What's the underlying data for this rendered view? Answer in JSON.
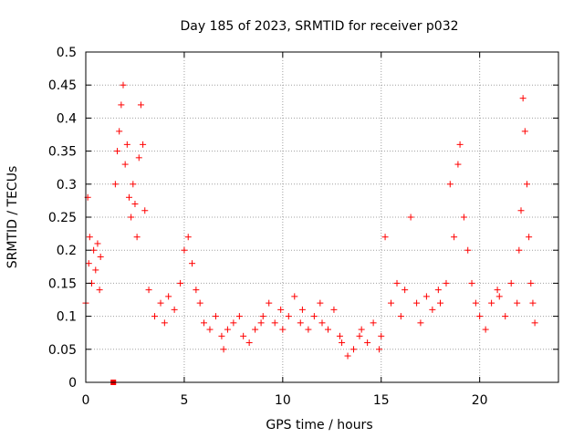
{
  "chart_data": {
    "type": "scatter",
    "title": "Day 185 of 2023, SRMTID for receiver p032",
    "xlabel": "GPS time / hours",
    "ylabel": "SRMTID / TECUs",
    "xlim": [
      0,
      24
    ],
    "ylim": [
      0,
      0.5
    ],
    "xticks": [
      0,
      5,
      10,
      15,
      20
    ],
    "xtick_labels": [
      "0",
      "5",
      "10",
      "15",
      "20"
    ],
    "yticks": [
      0,
      0.05,
      0.1,
      0.15,
      0.2,
      0.25,
      0.3,
      0.35,
      0.4,
      0.45,
      0.5
    ],
    "ytick_labels": [
      "0",
      "0.05",
      "0.1",
      "0.15",
      "0.2",
      "0.25",
      "0.3",
      "0.35",
      "0.4",
      "0.45",
      "0.5"
    ],
    "grid": true,
    "marker": "+",
    "color": "#ff0000",
    "series": [
      {
        "name": "SRMTID",
        "x": [
          0.0,
          0.1,
          0.15,
          0.2,
          0.3,
          0.4,
          0.5,
          0.6,
          0.7,
          0.75,
          1.5,
          1.6,
          1.7,
          1.8,
          1.9,
          2.0,
          2.1,
          2.2,
          2.3,
          2.4,
          2.5,
          2.6,
          2.7,
          2.8,
          2.9,
          3.0,
          3.2,
          3.5,
          3.8,
          4.0,
          4.2,
          4.5,
          4.8,
          5.0,
          5.2,
          5.4,
          5.6,
          5.8,
          6.0,
          6.3,
          6.6,
          6.9,
          7.0,
          7.2,
          7.5,
          7.8,
          8.0,
          8.3,
          8.6,
          8.9,
          9.0,
          9.3,
          9.6,
          9.9,
          10.0,
          10.3,
          10.6,
          10.9,
          11.0,
          11.3,
          11.6,
          11.9,
          12.0,
          12.3,
          12.6,
          12.9,
          13.0,
          13.3,
          13.6,
          13.9,
          14.0,
          14.3,
          14.6,
          14.9,
          15.0,
          15.2,
          15.5,
          15.8,
          16.0,
          16.2,
          16.5,
          16.8,
          17.0,
          17.3,
          17.6,
          17.9,
          18.0,
          18.3,
          18.5,
          18.7,
          18.9,
          19.0,
          19.2,
          19.4,
          19.6,
          19.8,
          20.0,
          20.3,
          20.6,
          20.9,
          21.0,
          21.3,
          21.6,
          21.9,
          22.0,
          22.1,
          22.2,
          22.3,
          22.4,
          22.5,
          22.6,
          22.7,
          22.8
        ],
        "y": [
          0.12,
          0.28,
          0.18,
          0.22,
          0.15,
          0.2,
          0.17,
          0.21,
          0.14,
          0.19,
          0.3,
          0.35,
          0.38,
          0.42,
          0.45,
          0.33,
          0.36,
          0.28,
          0.25,
          0.3,
          0.27,
          0.22,
          0.34,
          0.42,
          0.36,
          0.26,
          0.14,
          0.1,
          0.12,
          0.09,
          0.13,
          0.11,
          0.15,
          0.2,
          0.22,
          0.18,
          0.14,
          0.12,
          0.09,
          0.08,
          0.1,
          0.07,
          0.05,
          0.08,
          0.09,
          0.1,
          0.07,
          0.06,
          0.08,
          0.09,
          0.1,
          0.12,
          0.09,
          0.11,
          0.08,
          0.1,
          0.13,
          0.09,
          0.11,
          0.08,
          0.1,
          0.12,
          0.09,
          0.08,
          0.11,
          0.07,
          0.06,
          0.04,
          0.05,
          0.07,
          0.08,
          0.06,
          0.09,
          0.05,
          0.07,
          0.22,
          0.12,
          0.15,
          0.1,
          0.14,
          0.25,
          0.12,
          0.09,
          0.13,
          0.11,
          0.14,
          0.12,
          0.15,
          0.3,
          0.22,
          0.33,
          0.36,
          0.25,
          0.2,
          0.15,
          0.12,
          0.1,
          0.08,
          0.12,
          0.14,
          0.13,
          0.1,
          0.15,
          0.12,
          0.2,
          0.26,
          0.43,
          0.38,
          0.3,
          0.22,
          0.15,
          0.12,
          0.09
        ]
      }
    ],
    "highlight_point": {
      "x": 1.4,
      "y": 0.0
    }
  }
}
